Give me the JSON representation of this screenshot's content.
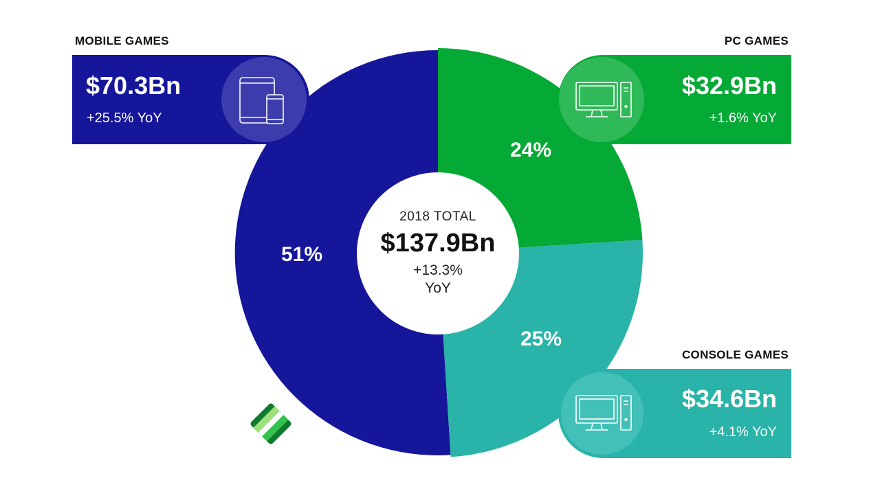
{
  "colors": {
    "mobile": "#16169b",
    "pc": "#05a935",
    "console": "#2ab3a9",
    "mobile_icon_circle": "#3c3cad",
    "pc_icon_circle": "#30b958",
    "console_icon_circle": "#43c0b8"
  },
  "chart_data": {
    "type": "pie",
    "title": "",
    "center": {
      "label": "2018 TOTAL",
      "value": "$137.9Bn",
      "yoy_line1": "+13.3%",
      "yoy_line2": "YoY"
    },
    "slices": [
      {
        "name": "MOBILE GAMES",
        "value": 51,
        "label": "51%",
        "amount": "$70.3Bn",
        "yoy": "+25.5% YoY",
        "icon": "tablet-phone-icon"
      },
      {
        "name": "PC GAMES",
        "value": 24,
        "label": "24%",
        "amount": "$32.9Bn",
        "yoy": "+1.6% YoY",
        "icon": "desktop-pc-icon"
      },
      {
        "name": "CONSOLE GAMES",
        "value": 25,
        "label": "25%",
        "amount": "$34.6Bn",
        "yoy": "+4.1% YoY",
        "icon": "console-monitor-icon"
      }
    ]
  },
  "logo": {
    "icon": "brand-logo-icon"
  }
}
